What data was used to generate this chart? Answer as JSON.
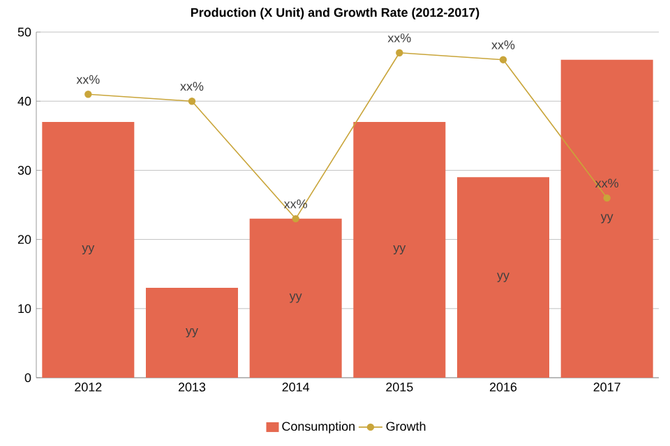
{
  "chart_data": {
    "type": "bar",
    "title": "Production (X Unit) and Growth Rate (2012-2017)",
    "categories": [
      "2012",
      "2013",
      "2014",
      "2015",
      "2016",
      "2017"
    ],
    "series": [
      {
        "name": "Consumption",
        "color": "#e5684f",
        "values": [
          37,
          13,
          23,
          37,
          29,
          46
        ],
        "value_labels": [
          "yy",
          "yy",
          "yy",
          "yy",
          "yy",
          "yy"
        ]
      },
      {
        "name": "Growth",
        "type": "line",
        "color": "#c9a53a",
        "marker": "circle",
        "values": [
          41,
          40,
          23,
          47,
          46,
          26
        ],
        "value_labels": [
          "xx%",
          "xx%",
          "xx%",
          "xx%",
          "xx%",
          "xx%"
        ]
      }
    ],
    "ylim": [
      0,
      50
    ],
    "yticks": [
      0,
      10,
      20,
      30,
      40,
      50
    ],
    "grid": "y",
    "legend": "bottom"
  }
}
